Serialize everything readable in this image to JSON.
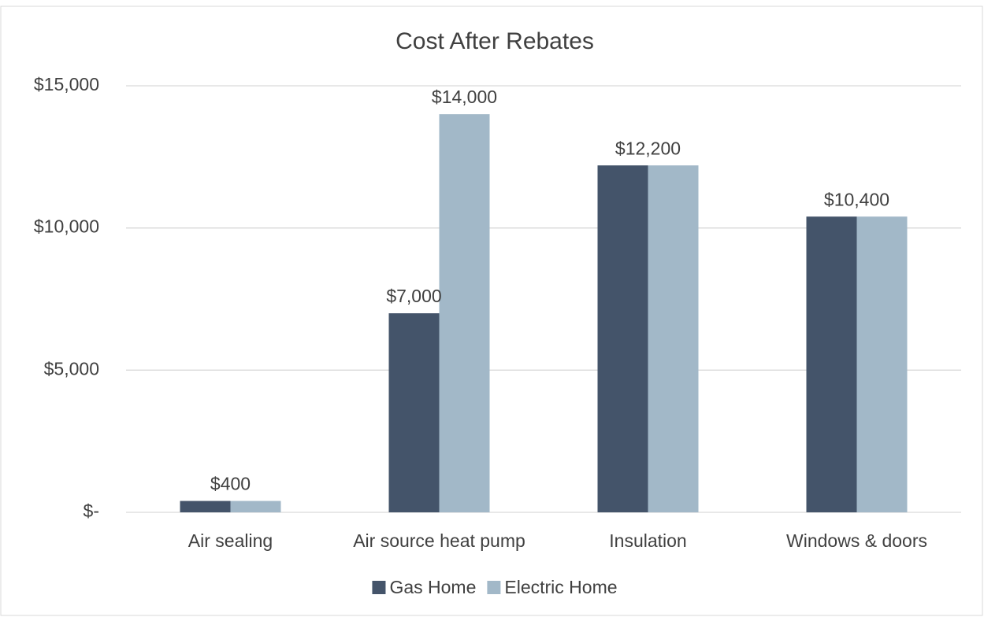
{
  "chart_data": {
    "type": "bar",
    "title": "Cost After Rebates",
    "categories": [
      "Air sealing",
      "Air source heat pump",
      "Insulation",
      "Windows & doors"
    ],
    "series": [
      {
        "name": "Gas Home",
        "color": "#44546a",
        "values": [
          400,
          7000,
          12200,
          10400
        ],
        "value_labels": [
          "$400",
          "$7,000",
          "$12,200",
          "$10,400"
        ]
      },
      {
        "name": "Electric Home",
        "color": "#a2b8c8",
        "values": [
          400,
          14000,
          12200,
          10400
        ],
        "value_labels": [
          null,
          "$14,000",
          null,
          null
        ]
      }
    ],
    "ylim": [
      0,
      15000
    ],
    "yticks": [
      {
        "value": 0,
        "label": "$-"
      },
      {
        "value": 5000,
        "label": "$5,000"
      },
      {
        "value": 10000,
        "label": "$10,000"
      },
      {
        "value": 15000,
        "label": "$15,000"
      }
    ],
    "grid": true,
    "legend": "bottom"
  }
}
